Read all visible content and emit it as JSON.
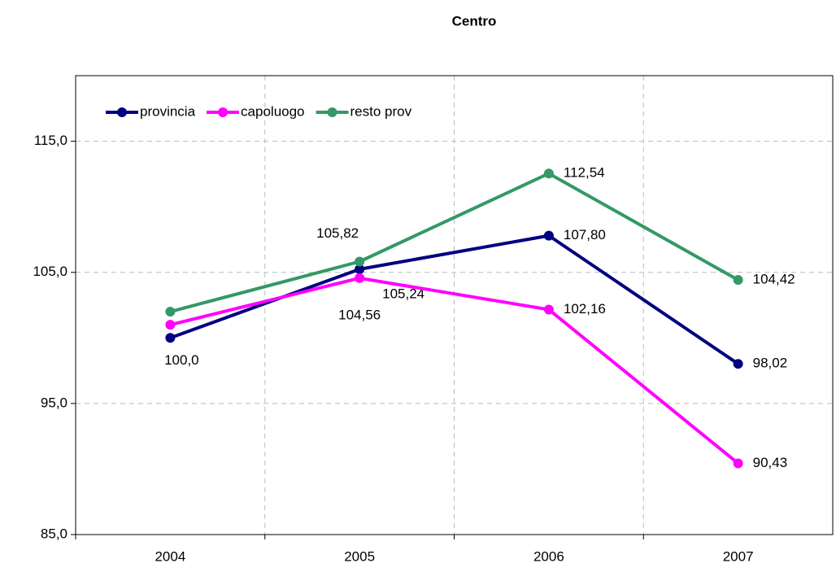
{
  "chart_data": {
    "type": "line",
    "title": "Centro",
    "categories": [
      "2004",
      "2005",
      "2006",
      "2007"
    ],
    "series": [
      {
        "name": "provincia",
        "color": "#000080",
        "values": [
          100.0,
          105.24,
          107.8,
          98.02
        ],
        "value_labels": [
          "100,0",
          "105,24",
          "107,80",
          "98,02"
        ]
      },
      {
        "name": "capoluogo",
        "color": "#ff00ff",
        "values": [
          101.0,
          104.56,
          102.16,
          90.43
        ],
        "value_labels": [
          null,
          "104,56",
          "102,16",
          "90,43"
        ]
      },
      {
        "name": "resto prov",
        "color": "#339966",
        "values": [
          102.0,
          105.82,
          112.54,
          104.42
        ],
        "value_labels": [
          null,
          "105,82",
          "112,54",
          "104,42"
        ]
      }
    ],
    "ylim": [
      85,
      120
    ],
    "yticks": [
      {
        "value": 85,
        "label": "85,0"
      },
      {
        "value": 95,
        "label": "95,0"
      },
      {
        "value": 105,
        "label": "105,0"
      },
      {
        "value": 115,
        "label": "115,0"
      }
    ],
    "grid": true,
    "legend": "top-left"
  }
}
